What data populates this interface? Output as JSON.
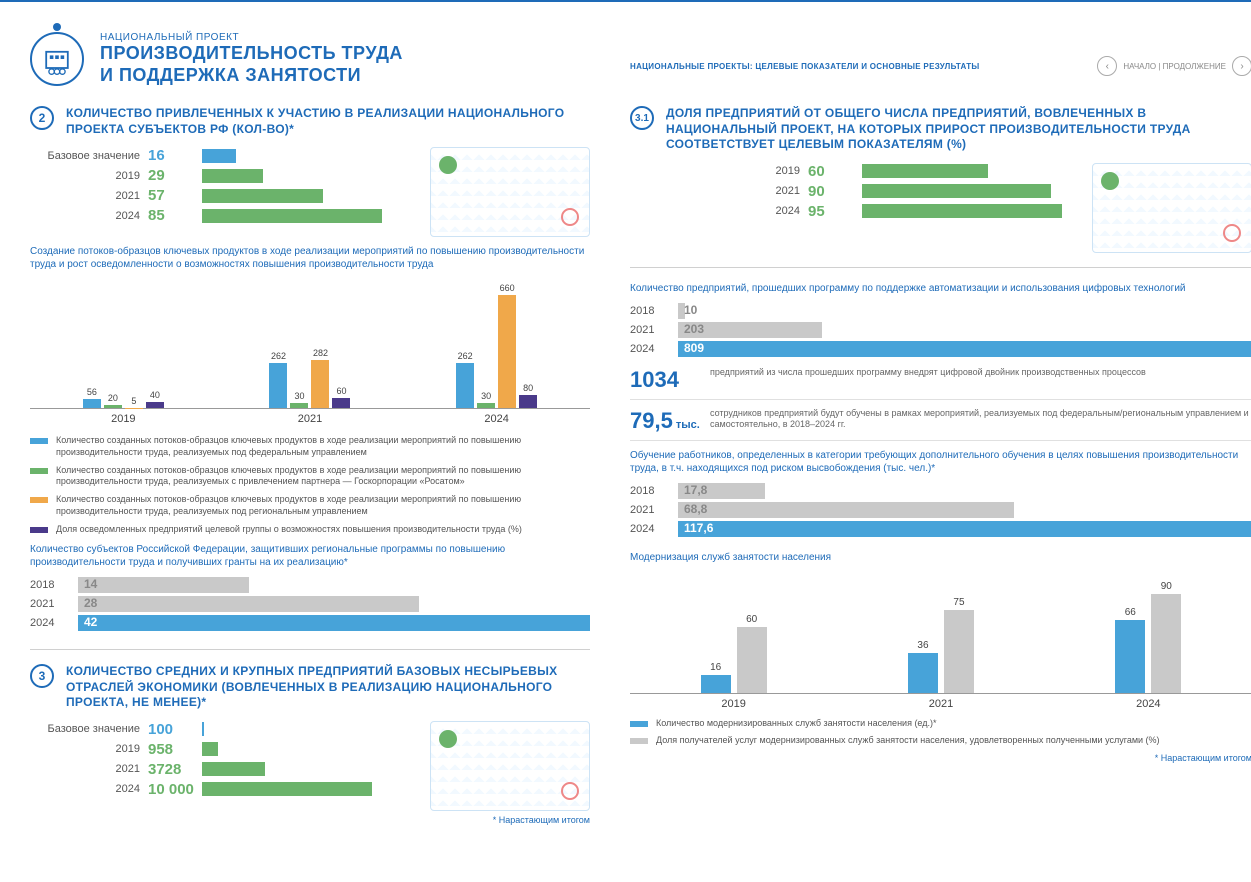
{
  "colors": {
    "primary": "#1e6bb8",
    "green": "#6bb36b",
    "blue": "#47a3d9",
    "orange": "#f0a84a",
    "purple": "#4a3a8a",
    "grey": "#c9c9c9",
    "greyDark": "#999999",
    "textGrey": "#666666"
  },
  "header": {
    "overline": "НАЦИОНАЛЬНЫЙ ПРОЕКТ",
    "title_l1": "ПРОИЗВОДИТЕЛЬНОСТЬ ТРУДА",
    "title_l2": "И ПОДДЕРЖКА ЗАНЯТОСТИ",
    "right_text": "НАЦИОНАЛЬНЫЕ ПРОЕКТЫ: ЦЕЛЕВЫЕ ПОКАЗАТЕЛИ И ОСНОВНЫЕ РЕЗУЛЬТАТЫ",
    "nav_label": "НАЧАЛО | ПРОДОЛЖЕНИЕ"
  },
  "section2": {
    "num": "2",
    "title": "КОЛИЧЕСТВО ПРИВЛЕЧЕННЫХ К УЧАСТИЮ В РЕАЛИЗАЦИИ НАЦИОНАЛЬНОГО ПРОЕКТА СУБЪЕКТОВ РФ (КОЛ-ВО)*",
    "hbars": {
      "max": 85,
      "rows": [
        {
          "label": "Базовое значение",
          "value": 16,
          "color": "#47a3d9"
        },
        {
          "label": "2019",
          "value": 29,
          "color": "#6bb36b"
        },
        {
          "label": "2021",
          "value": 57,
          "color": "#6bb36b"
        },
        {
          "label": "2024",
          "value": 85,
          "color": "#6bb36b"
        }
      ]
    },
    "sub1": "Создание потоков-образцов ключевых продуктов в ходе реализации мероприятий по повышению производительности труда и рост осведомленности о возможностях повышения производительности труда",
    "vchart": {
      "ymax": 700,
      "years": [
        "2019",
        "2021",
        "2024"
      ],
      "series_colors": [
        "#47a3d9",
        "#6bb36b",
        "#f0a84a",
        "#4a3a8a"
      ],
      "groups": [
        [
          56,
          20,
          5,
          40
        ],
        [
          262,
          30,
          282,
          60
        ],
        [
          262,
          30,
          660,
          80
        ]
      ]
    },
    "legend": [
      {
        "color": "#47a3d9",
        "text": "Количество созданных потоков-образцов ключевых продуктов в ходе реализации мероприятий по повышению производительности труда, реализуемых под федеральным управлением"
      },
      {
        "color": "#6bb36b",
        "text": "Количество созданных потоков-образцов ключевых продуктов в ходе реализации мероприятий по повышению производительности труда, реализуемых с привлечением партнера — Госкорпорации «Росатом»"
      },
      {
        "color": "#f0a84a",
        "text": "Количество созданных потоков-образцов ключевых продуктов в ходе реализации мероприятий по повышению производительности труда, реализуемых под региональным управлением"
      },
      {
        "color": "#4a3a8a",
        "text": "Доля осведомленных предприятий целевой группы о возможностях повышения производительности труда (%)"
      }
    ],
    "sub2": "Количество субъектов Российской Федерации, защитивших региональные программы по повышению производительности труда и получивших гранты на их реализацию*",
    "thinbars": {
      "max": 42,
      "rows": [
        {
          "label": "2018",
          "value": "14",
          "num": 14,
          "fill": "#c9c9c9"
        },
        {
          "label": "2021",
          "value": "28",
          "num": 28,
          "fill": "#c9c9c9"
        },
        {
          "label": "2024",
          "value": "42",
          "num": 42,
          "fill": "#47a3d9"
        }
      ]
    }
  },
  "section3": {
    "num": "3",
    "title": "КОЛИЧЕСТВО СРЕДНИХ И КРУПНЫХ ПРЕДПРИЯТИЙ БАЗОВЫХ НЕСЫРЬЕВЫХ ОТРАСЛЕЙ ЭКОНОМИКИ (ВОВЛЕЧЕННЫХ В РЕАЛИЗАЦИЮ НАЦИОНАЛЬНОГО ПРОЕКТА, НЕ МЕНЕЕ)*",
    "hbars": {
      "max": 10000,
      "rows": [
        {
          "label": "Базовое значение",
          "value": 100,
          "disp": "100",
          "color": "#47a3d9"
        },
        {
          "label": "2019",
          "value": 958,
          "disp": "958",
          "color": "#6bb36b"
        },
        {
          "label": "2021",
          "value": 3728,
          "disp": "3728",
          "color": "#6bb36b"
        },
        {
          "label": "2024",
          "value": 10000,
          "disp": "10 000",
          "color": "#6bb36b"
        }
      ]
    },
    "footnote": "* Нарастающим итогом"
  },
  "section31": {
    "num": "3.1",
    "title": "ДОЛЯ ПРЕДПРИЯТИЙ ОТ ОБЩЕГО ЧИСЛА ПРЕДПРИЯТИЙ, ВОВЛЕЧЕННЫХ В НАЦИОНАЛЬНЫЙ ПРОЕКТ, НА КОТОРЫХ ПРИРОСТ ПРОИЗВОДИТЕЛЬНОСТИ ТРУДА СООТВЕТСТВУЕТ ЦЕЛЕВЫМ ПОКАЗАТЕЛЯМ (%)",
    "hbars": {
      "max": 95,
      "rows": [
        {
          "label": "2019",
          "value": 60,
          "color": "#6bb36b"
        },
        {
          "label": "2021",
          "value": 90,
          "color": "#6bb36b"
        },
        {
          "label": "2024",
          "value": 95,
          "color": "#6bb36b"
        }
      ]
    },
    "sub1": "Количество предприятий, прошедших программу по поддержке автоматизации и использования цифровых технологий",
    "thinbars1": {
      "max": 809,
      "rows": [
        {
          "label": "2018",
          "value": "10",
          "num": 10,
          "fill": "#c9c9c9"
        },
        {
          "label": "2021",
          "value": "203",
          "num": 203,
          "fill": "#c9c9c9"
        },
        {
          "label": "2024",
          "value": "809",
          "num": 809,
          "fill": "#47a3d9"
        }
      ]
    },
    "stats": [
      {
        "num": "1034",
        "unit": "",
        "text": "предприятий из числа прошедших программу внедрят цифровой двойник производственных процессов"
      },
      {
        "num": "79,5",
        "unit": "тыс.",
        "text": "сотрудников предприятий будут обучены в рамках мероприятий, реализуемых под федеральным/региональным управлением и самостоятельно, в 2018–2024 гг."
      }
    ],
    "sub2": "Обучение работников, определенных в категории требующих дополнительного обучения в целях повышения производительности труда, в т.ч. находящихся под риском высвобождения (тыс. чел.)*",
    "thinbars2": {
      "max": 117.6,
      "rows": [
        {
          "label": "2018",
          "value": "17,8",
          "num": 17.8,
          "fill": "#c9c9c9"
        },
        {
          "label": "2021",
          "value": "68,8",
          "num": 68.8,
          "fill": "#c9c9c9"
        },
        {
          "label": "2024",
          "value": "117,6",
          "num": 117.6,
          "fill": "#47a3d9"
        }
      ]
    },
    "sub3": "Модернизация служб занятости населения",
    "pvchart": {
      "ymax": 100,
      "years": [
        "2019",
        "2021",
        "2024"
      ],
      "colors": [
        "#47a3d9",
        "#c9c9c9"
      ],
      "groups": [
        [
          16,
          60
        ],
        [
          36,
          75
        ],
        [
          66,
          90
        ]
      ]
    },
    "legend2": [
      {
        "color": "#47a3d9",
        "text": "Количество модернизированных служб занятости населения (ед.)*"
      },
      {
        "color": "#c9c9c9",
        "text": "Доля получателей услуг модернизированных служб занятости населения, удовлетворенных полученными услугами (%)"
      }
    ],
    "footnote": "* Нарастающим итогом"
  }
}
